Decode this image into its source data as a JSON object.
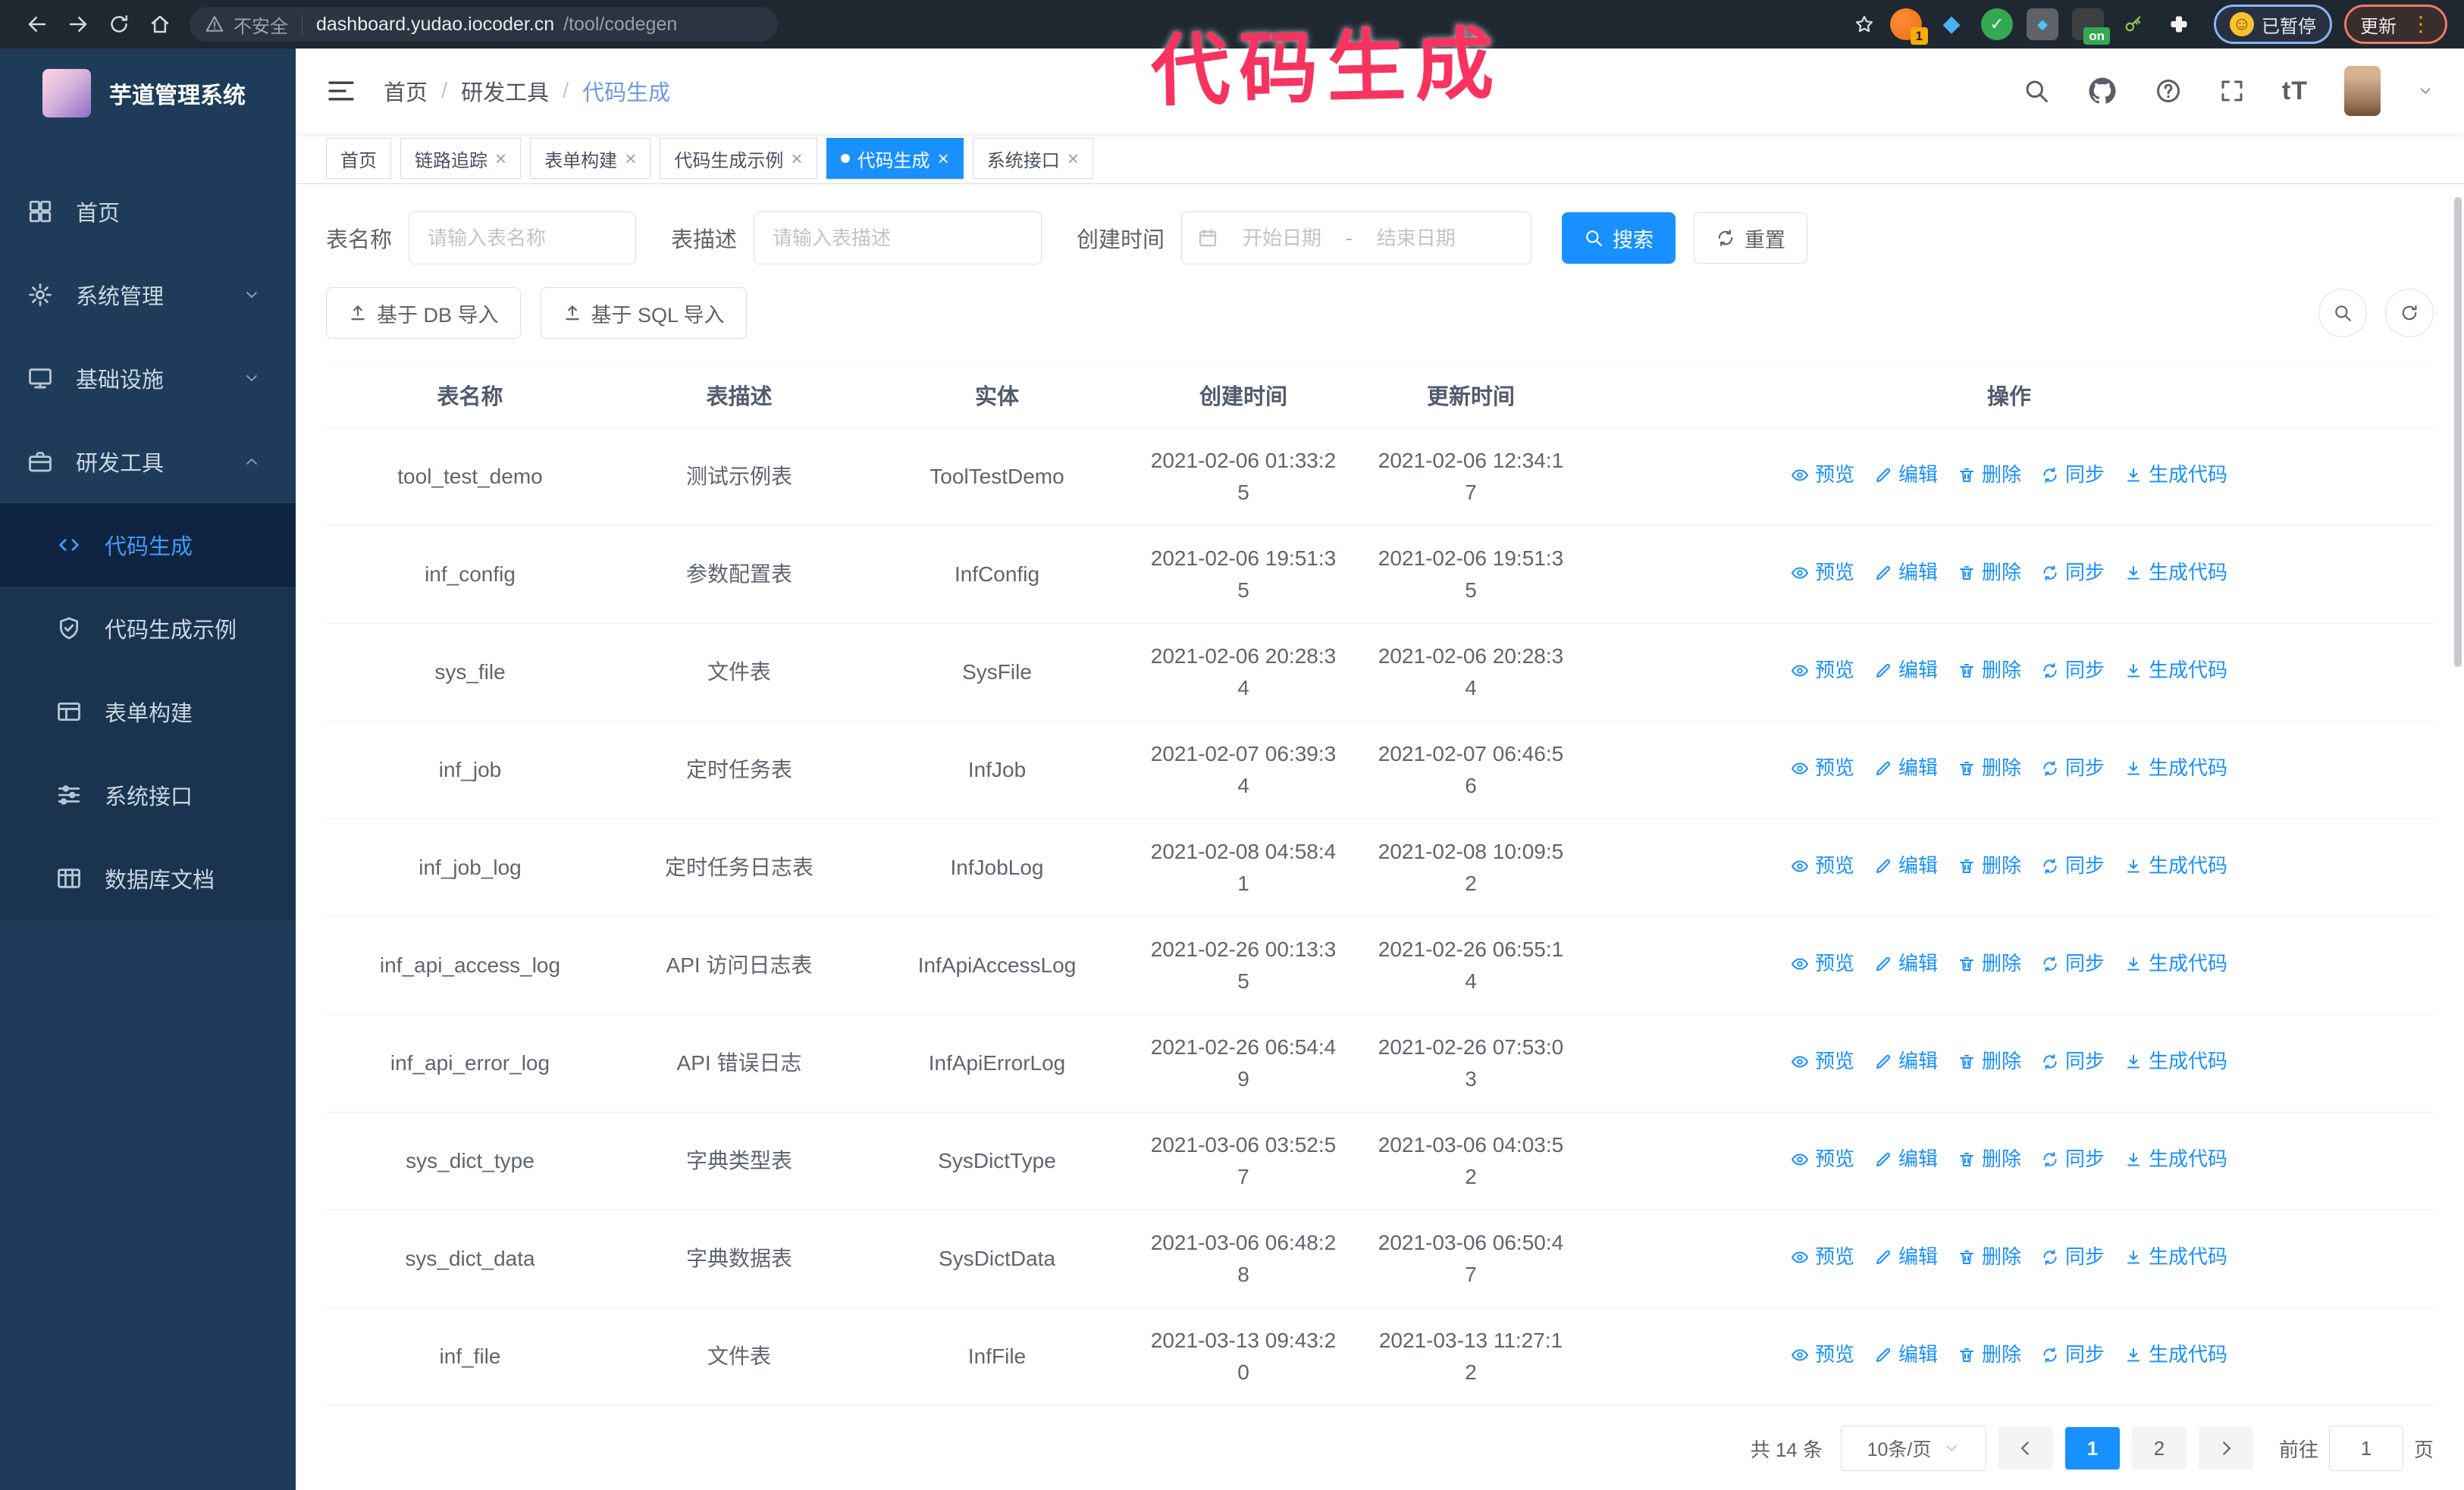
{
  "browser": {
    "security_label": "不安全",
    "url_host": "dashboard.yudao.iocoder.cn",
    "url_path": "/tool/codegen",
    "ext_badge_1": "1",
    "ext_badge_on": "on",
    "paused_label": "已暂停",
    "update_label": "更新"
  },
  "annotation": {
    "text": "代码生成",
    "color": "#f8335f"
  },
  "sidebar": {
    "title": "芋道管理系统",
    "items": [
      {
        "label": "首页",
        "icon": "dashboard-icon",
        "arrow": null
      },
      {
        "label": "系统管理",
        "icon": "gear-icon",
        "arrow": "down"
      },
      {
        "label": "基础设施",
        "icon": "monitor-icon",
        "arrow": "down"
      },
      {
        "label": "研发工具",
        "icon": "toolbox-icon",
        "arrow": "up"
      }
    ],
    "submenu": [
      {
        "label": "代码生成",
        "icon": "code-icon",
        "active": true
      },
      {
        "label": "代码生成示例",
        "icon": "shield-check-icon",
        "active": false
      },
      {
        "label": "表单构建",
        "icon": "form-icon",
        "active": false
      },
      {
        "label": "系统接口",
        "icon": "sliders-icon",
        "active": false
      },
      {
        "label": "数据库文档",
        "icon": "database-icon",
        "active": false
      }
    ]
  },
  "header": {
    "breadcrumb": [
      "首页",
      "研发工具",
      "代码生成"
    ],
    "breadcrumb_separator": "/"
  },
  "tabs": [
    {
      "label": "首页",
      "closable": false,
      "active": false
    },
    {
      "label": "链路追踪",
      "closable": true,
      "active": false
    },
    {
      "label": "表单构建",
      "closable": true,
      "active": false
    },
    {
      "label": "代码生成示例",
      "closable": true,
      "active": false
    },
    {
      "label": "代码生成",
      "closable": true,
      "active": true
    },
    {
      "label": "系统接口",
      "closable": true,
      "active": false
    }
  ],
  "filters": {
    "name_label": "表名称",
    "name_placeholder": "请输入表名称",
    "desc_label": "表描述",
    "desc_placeholder": "请输入表描述",
    "time_label": "创建时间",
    "start_placeholder": "开始日期",
    "range_separator": "-",
    "end_placeholder": "结束日期",
    "search_label": "搜索",
    "reset_label": "重置"
  },
  "toolbar": {
    "db_import_label": "基于 DB 导入",
    "sql_import_label": "基于 SQL 导入"
  },
  "table": {
    "columns": [
      "表名称",
      "表描述",
      "实体",
      "创建时间",
      "更新时间",
      "操作"
    ],
    "actions": [
      {
        "name": "preview",
        "label": "预览",
        "icon": "eye-icon"
      },
      {
        "name": "edit",
        "label": "编辑",
        "icon": "edit-icon"
      },
      {
        "name": "delete",
        "label": "删除",
        "icon": "delete-icon"
      },
      {
        "name": "sync",
        "label": "同步",
        "icon": "sync-icon"
      },
      {
        "name": "generate",
        "label": "生成代码",
        "icon": "download-icon"
      }
    ],
    "rows": [
      {
        "name": "tool_test_demo",
        "desc": "测试示例表",
        "entity": "ToolTestDemo",
        "created": "2021-02-06 01:33:25",
        "updated": "2021-02-06 12:34:17"
      },
      {
        "name": "inf_config",
        "desc": "参数配置表",
        "entity": "InfConfig",
        "created": "2021-02-06 19:51:35",
        "updated": "2021-02-06 19:51:35"
      },
      {
        "name": "sys_file",
        "desc": "文件表",
        "entity": "SysFile",
        "created": "2021-02-06 20:28:34",
        "updated": "2021-02-06 20:28:34"
      },
      {
        "name": "inf_job",
        "desc": "定时任务表",
        "entity": "InfJob",
        "created": "2021-02-07 06:39:34",
        "updated": "2021-02-07 06:46:56"
      },
      {
        "name": "inf_job_log",
        "desc": "定时任务日志表",
        "entity": "InfJobLog",
        "created": "2021-02-08 04:58:41",
        "updated": "2021-02-08 10:09:52"
      },
      {
        "name": "inf_api_access_log",
        "desc": "API 访问日志表",
        "entity": "InfApiAccessLog",
        "created": "2021-02-26 00:13:35",
        "updated": "2021-02-26 06:55:14"
      },
      {
        "name": "inf_api_error_log",
        "desc": "API 错误日志",
        "entity": "InfApiErrorLog",
        "created": "2021-02-26 06:54:49",
        "updated": "2021-02-26 07:53:03"
      },
      {
        "name": "sys_dict_type",
        "desc": "字典类型表",
        "entity": "SysDictType",
        "created": "2021-03-06 03:52:57",
        "updated": "2021-03-06 04:03:52"
      },
      {
        "name": "sys_dict_data",
        "desc": "字典数据表",
        "entity": "SysDictData",
        "created": "2021-03-06 06:48:28",
        "updated": "2021-03-06 06:50:47"
      },
      {
        "name": "inf_file",
        "desc": "文件表",
        "entity": "InfFile",
        "created": "2021-03-13 09:43:20",
        "updated": "2021-03-13 11:27:12"
      }
    ]
  },
  "pagination": {
    "total": "共 14 条",
    "page_size": "10条/页",
    "pages": [
      "1",
      "2"
    ],
    "active_page": "1",
    "goto_label": "前往",
    "goto_value": "1",
    "page_unit": "页"
  },
  "colors": {
    "primary": "#1890ff",
    "sidebar_bg": "#1e3c59",
    "annotation": "#f8335f"
  }
}
